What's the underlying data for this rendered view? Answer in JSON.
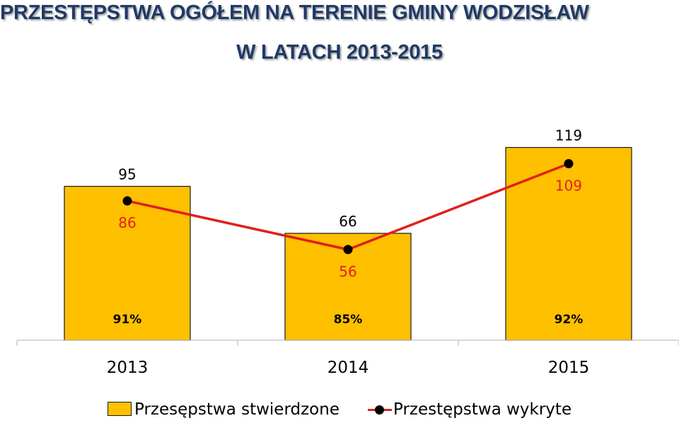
{
  "title_line1": "PRZESTĘPSTWA OGÓŁEM NA TERENIE GMINY WODZISŁAW",
  "title_line2": "W LATACH 2013-2015",
  "colors": {
    "bar": "#ffc000",
    "bar_border": "#1a1a1a",
    "line": "#e0201b",
    "marker": "#000000",
    "title": "#1f3a66",
    "line_label": "#e0201b"
  },
  "chart_data": {
    "type": "bar",
    "categories": [
      "2013",
      "2014",
      "2015"
    ],
    "series": [
      {
        "name": "Przesępstwa stwierdzone",
        "type": "bar",
        "values": [
          95,
          66,
          119
        ],
        "labels": [
          "95",
          "66",
          "119"
        ]
      },
      {
        "name": "Przestępstwa wykryte",
        "type": "line",
        "values": [
          86,
          56,
          109
        ],
        "labels": [
          "86",
          "56",
          "109"
        ]
      }
    ],
    "rates": [
      "91%",
      "85%",
      "92%"
    ],
    "ylim": [
      0,
      130
    ],
    "grid": false,
    "legend": "bottom"
  }
}
